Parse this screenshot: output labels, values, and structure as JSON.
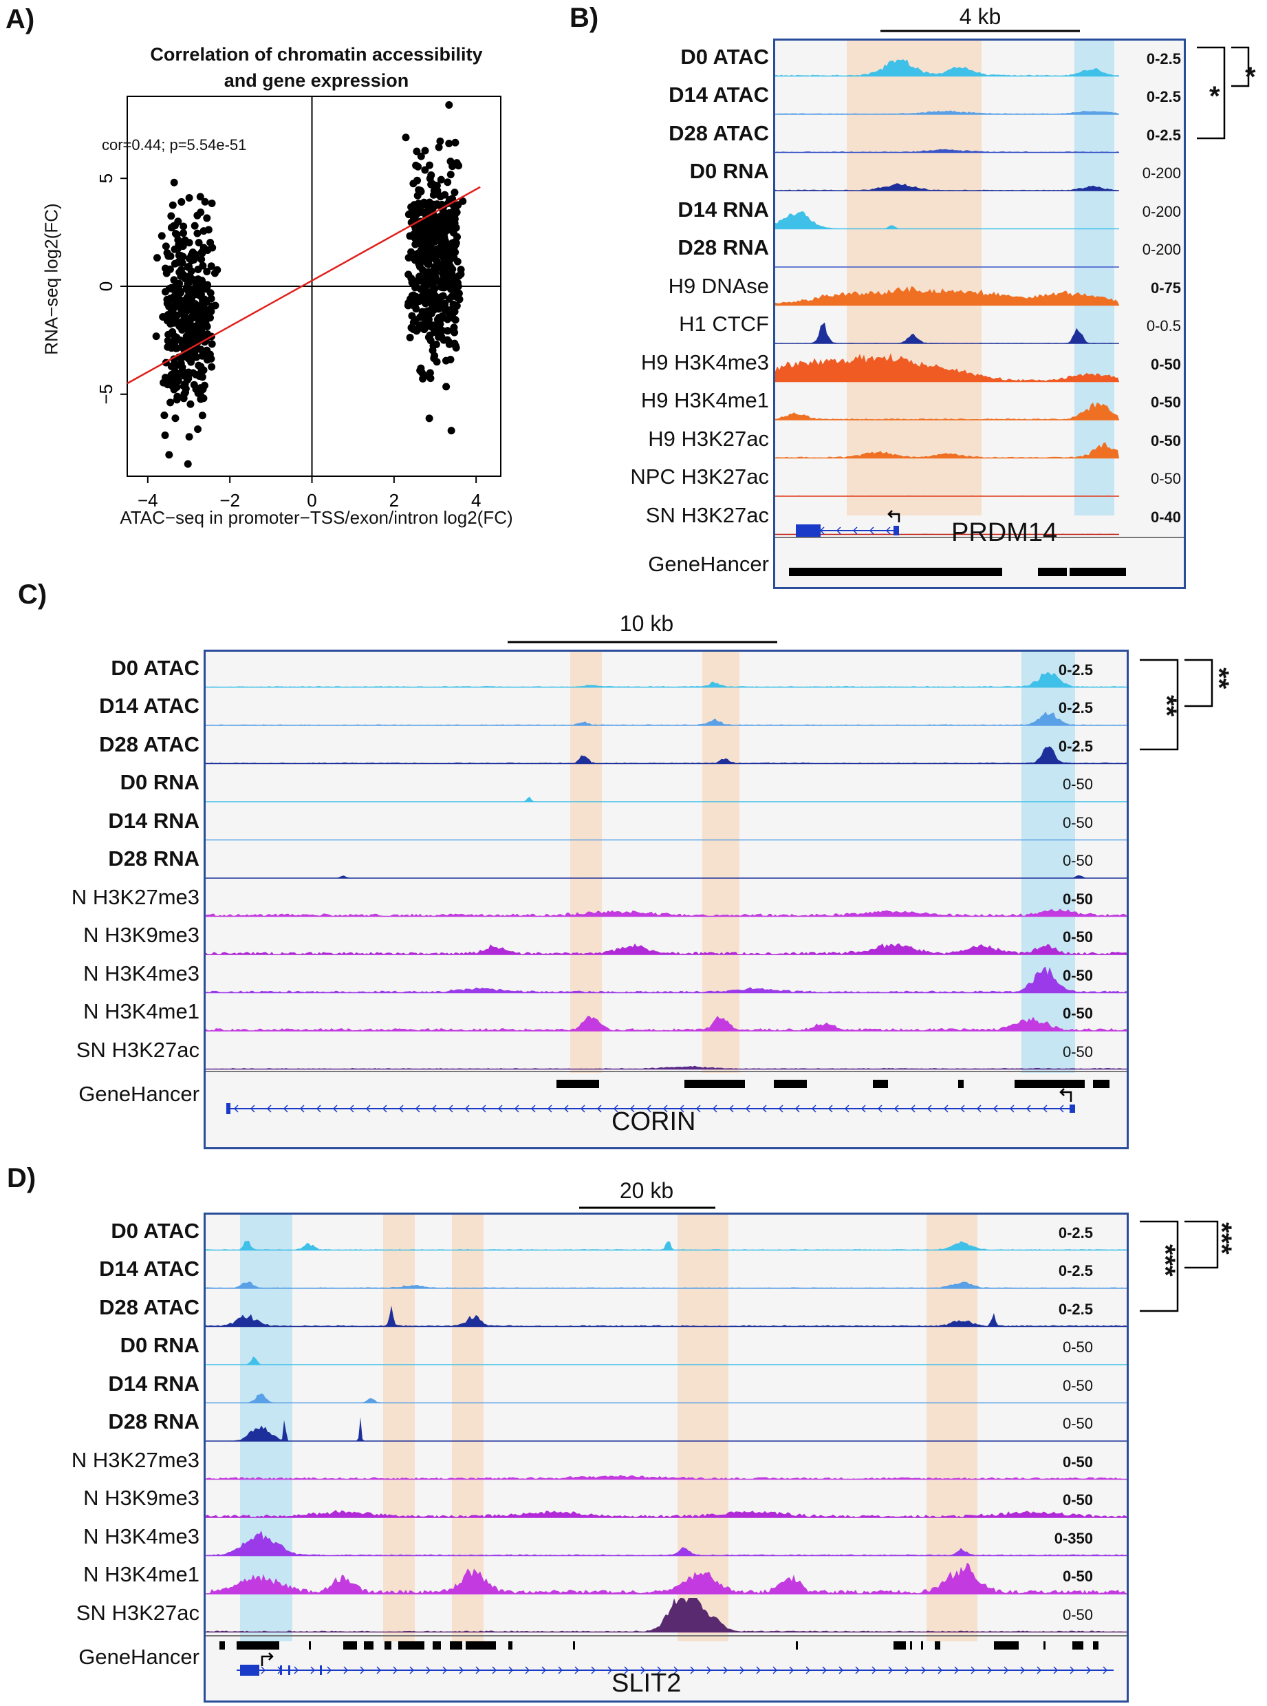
{
  "panels": {
    "A": {
      "label": "A)",
      "chart_data": {
        "type": "scatter",
        "title": "Correlation of chromatin accessibility\nand gene expression",
        "title_line1": "Correlation of chromatin accessibility",
        "title_line2": "and gene expression",
        "annotation": "cor=0.44; p=5.54e-51",
        "xlabel": "ATAC−seq in promoter−TSS/exon/intron log2(FC)",
        "ylabel": "RNA−seq log2(FC)",
        "xlim": [
          -4.5,
          4.6
        ],
        "ylim": [
          -8.8,
          8.8
        ],
        "xticks": [
          -4,
          -2,
          0,
          2,
          4
        ],
        "xtick_labels": [
          "−4",
          "−2",
          "0",
          "2",
          "4"
        ],
        "yticks": [
          -5,
          0,
          5
        ],
        "ytick_labels": [
          "−5",
          "0",
          "5"
        ],
        "regression_line": {
          "x": [
            -4.5,
            4.1
          ],
          "y": [
            -4.5,
            4.6
          ],
          "color": "#e0201b"
        },
        "clusters": [
          {
            "name": "negative ATAC",
            "x_center": -3.0,
            "x_spread": 0.55,
            "y_center": -1.2,
            "y_spread": 3.0,
            "n": 380
          },
          {
            "name": "positive ATAC",
            "x_center": 3.0,
            "x_spread": 0.55,
            "y_center": 1.2,
            "y_spread": 3.0,
            "n": 520
          }
        ]
      }
    },
    "B": {
      "label": "B)",
      "scale": "4 kb",
      "gene": "PRDM14",
      "genehancer_label": "GeneHancer",
      "tracks": [
        {
          "label": "D0 ATAC",
          "bold": true,
          "range": "0-2.5",
          "range_bold": true,
          "color": "#3fc0e8"
        },
        {
          "label": "D14 ATAC",
          "bold": true,
          "range": "0-2.5",
          "range_bold": true,
          "color": "#5aa0e6"
        },
        {
          "label": "D28 ATAC",
          "bold": true,
          "range": "0-2.5",
          "range_bold": true,
          "color": "#3a55c8"
        },
        {
          "label": "D0 RNA",
          "bold": true,
          "range": "0-200",
          "range_bold": false,
          "color": "#1d2f9a"
        },
        {
          "label": "D14 RNA",
          "bold": true,
          "range": "0-200",
          "range_bold": false,
          "color": "#3fc0e8"
        },
        {
          "label": "D28 RNA",
          "bold": true,
          "range": "0-200",
          "range_bold": false,
          "color": "#3a55c8"
        },
        {
          "label": "H9 DNAse",
          "bold": false,
          "range": "0-75",
          "range_bold": true,
          "color": "#f07023"
        },
        {
          "label": "H1 CTCF",
          "bold": false,
          "range": "0-0.5",
          "range_bold": false,
          "color": "#1d2f9a"
        },
        {
          "label": "H9 H3K4me3",
          "bold": false,
          "range": "0-50",
          "range_bold": true,
          "color": "#f05a23"
        },
        {
          "label": "H9 H3K4me1",
          "bold": false,
          "range": "0-50",
          "range_bold": true,
          "color": "#f07023"
        },
        {
          "label": "H9 H3K27ac",
          "bold": false,
          "range": "0-50",
          "range_bold": true,
          "color": "#f07023"
        },
        {
          "label": "NPC H3K27ac",
          "bold": false,
          "range": "0-50",
          "range_bold": false,
          "color": "#e03a1a"
        },
        {
          "label": "SN H3K27ac",
          "bold": false,
          "range": "0-40",
          "range_bold": true,
          "color": "#c01a10"
        }
      ],
      "significance": [
        "*",
        "*"
      ]
    },
    "C": {
      "label": "C)",
      "scale": "10 kb",
      "gene": "CORIN",
      "genehancer_label": "GeneHancer",
      "tracks": [
        {
          "label": "D0 ATAC",
          "bold": true,
          "range": "0-2.5",
          "range_bold": true,
          "color": "#3fc0e8"
        },
        {
          "label": "D14 ATAC",
          "bold": true,
          "range": "0-2.5",
          "range_bold": true,
          "color": "#5aa0e6"
        },
        {
          "label": "D28 ATAC",
          "bold": true,
          "range": "0-2.5",
          "range_bold": true,
          "color": "#1d2f9a"
        },
        {
          "label": "D0 RNA",
          "bold": true,
          "range": "0-50",
          "range_bold": false,
          "color": "#3fc0e8"
        },
        {
          "label": "D14 RNA",
          "bold": true,
          "range": "0-50",
          "range_bold": false,
          "color": "#5aa0e6"
        },
        {
          "label": "D28 RNA",
          "bold": true,
          "range": "0-50",
          "range_bold": false,
          "color": "#1d2f9a"
        },
        {
          "label": "N H3K27me3",
          "bold": false,
          "range": "0-50",
          "range_bold": true,
          "color": "#c23ae0"
        },
        {
          "label": "N H3K9me3",
          "bold": false,
          "range": "0-50",
          "range_bold": true,
          "color": "#b02ad8"
        },
        {
          "label": "N H3K4me3",
          "bold": false,
          "range": "0-50",
          "range_bold": true,
          "color": "#9a3ae8"
        },
        {
          "label": "N H3K4me1",
          "bold": false,
          "range": "0-50",
          "range_bold": true,
          "color": "#c23ae0"
        },
        {
          "label": "SN H3K27ac",
          "bold": false,
          "range": "0-50",
          "range_bold": false,
          "color": "#5a2a8a"
        }
      ],
      "significance": [
        "**",
        "**"
      ]
    },
    "D": {
      "label": "D)",
      "scale": "20 kb",
      "gene": "SLIT2",
      "genehancer_label": "GeneHancer",
      "tracks": [
        {
          "label": "D0 ATAC",
          "bold": true,
          "range": "0-2.5",
          "range_bold": true,
          "color": "#3fc0e8"
        },
        {
          "label": "D14 ATAC",
          "bold": true,
          "range": "0-2.5",
          "range_bold": true,
          "color": "#5aa0e6"
        },
        {
          "label": "D28 ATAC",
          "bold": true,
          "range": "0-2.5",
          "range_bold": true,
          "color": "#1d2f9a"
        },
        {
          "label": "D0 RNA",
          "bold": true,
          "range": "0-50",
          "range_bold": false,
          "color": "#3fc0e8"
        },
        {
          "label": "D14 RNA",
          "bold": true,
          "range": "0-50",
          "range_bold": false,
          "color": "#5aa0e6"
        },
        {
          "label": "D28 RNA",
          "bold": true,
          "range": "0-50",
          "range_bold": false,
          "color": "#1d2f9a"
        },
        {
          "label": "N H3K27me3",
          "bold": false,
          "range": "0-50",
          "range_bold": true,
          "color": "#c23ae0"
        },
        {
          "label": "N H3K9me3",
          "bold": false,
          "range": "0-50",
          "range_bold": true,
          "color": "#b02ad8"
        },
        {
          "label": "N H3K4me3",
          "bold": false,
          "range": "0-350",
          "range_bold": true,
          "color": "#9a3ae8"
        },
        {
          "label": "N H3K4me1",
          "bold": false,
          "range": "0-50",
          "range_bold": true,
          "color": "#c23ae0"
        },
        {
          "label": "SN H3K27ac",
          "bold": false,
          "range": "0-50",
          "range_bold": false,
          "color": "#5a2a70"
        }
      ],
      "significance": [
        "***",
        "***"
      ]
    }
  }
}
